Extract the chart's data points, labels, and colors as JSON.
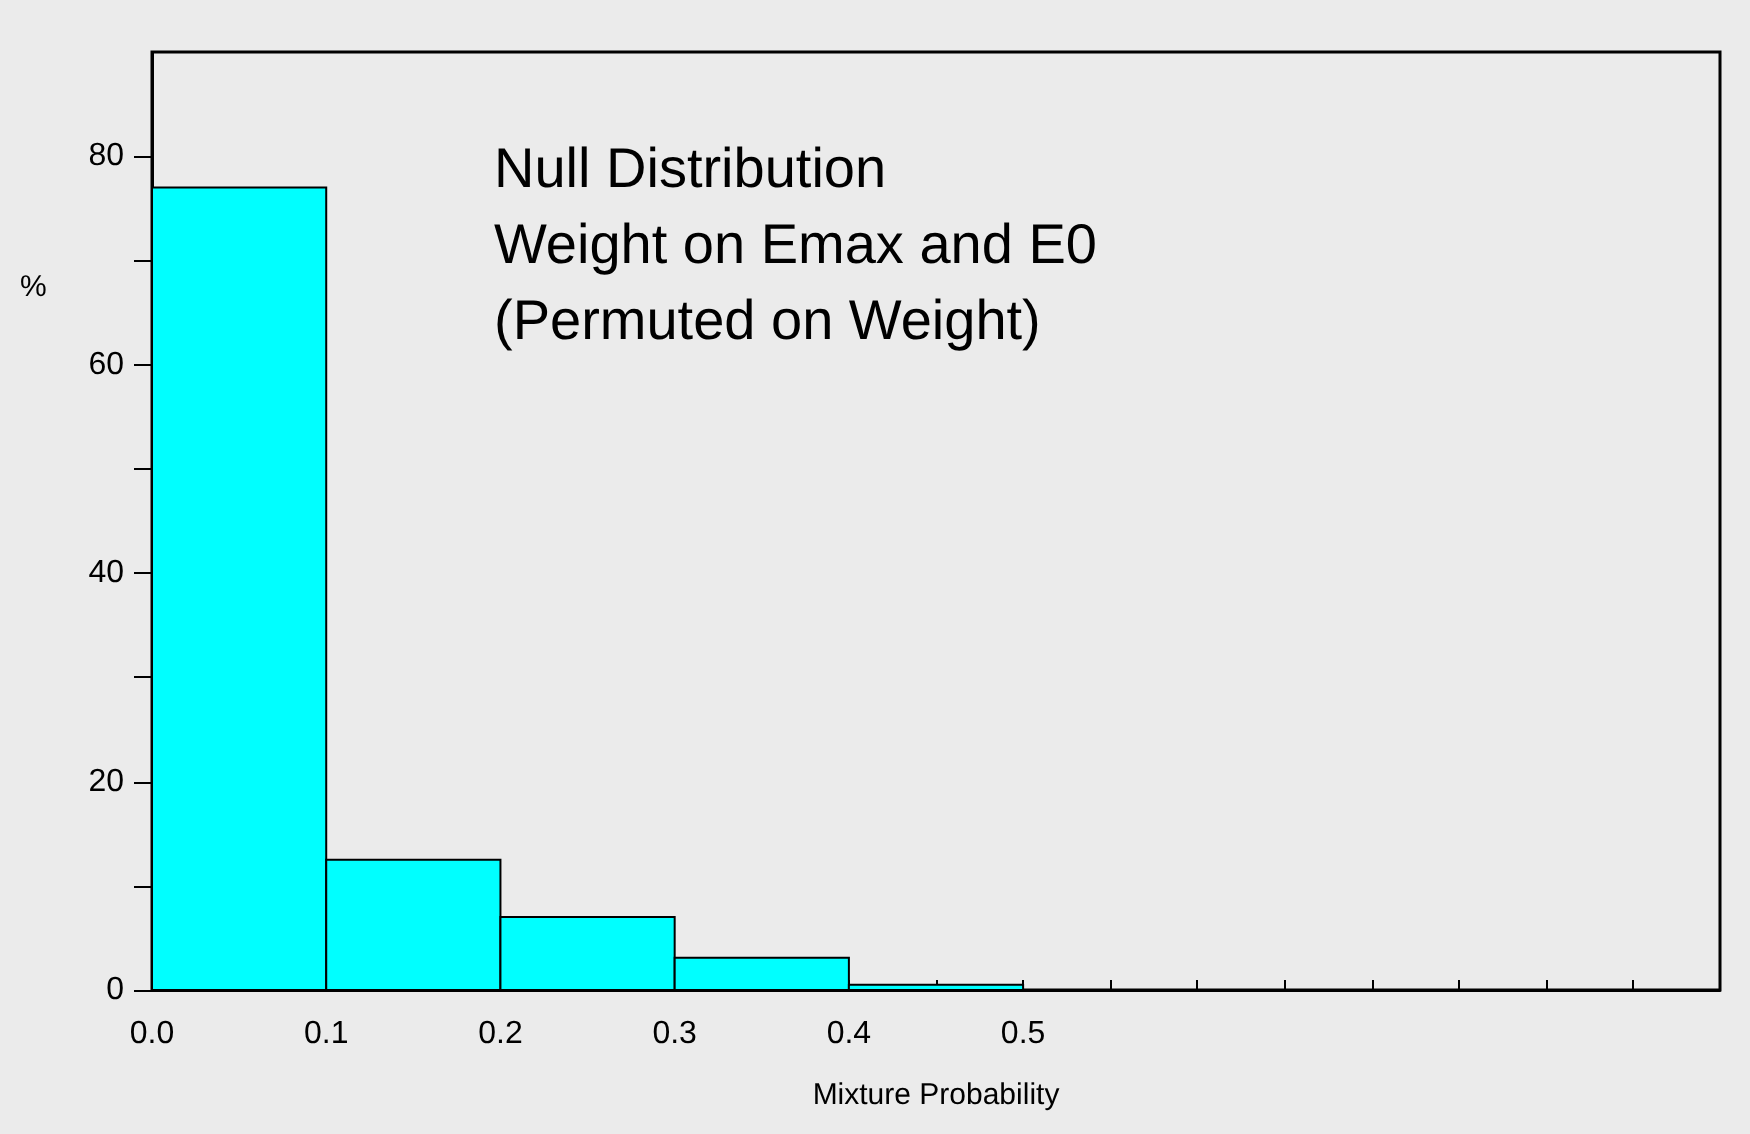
{
  "chart_data": {
    "type": "histogram",
    "title": "Null Distribution\nWeight on Emax and E0\n(Permuted on Weight)",
    "xlabel": "Mixture Probability",
    "ylabel": "%",
    "bins": [
      0,
      0.1,
      0.2,
      0.3,
      0.4,
      0.5
    ],
    "values": [
      77,
      12.5,
      7,
      3.1,
      0.5
    ],
    "color": "#00ffff",
    "xlim": [
      0,
      0.9
    ],
    "xticks": [
      {
        "value": 0,
        "label": "0.0"
      },
      {
        "value": 0.05,
        "label": null
      },
      {
        "value": 0.1,
        "label": "0.1"
      },
      {
        "value": 0.15,
        "label": null
      },
      {
        "value": 0.2,
        "label": "0.2"
      },
      {
        "value": 0.25,
        "label": null
      },
      {
        "value": 0.3,
        "label": "0.3"
      },
      {
        "value": 0.35,
        "label": null
      },
      {
        "value": 0.4,
        "label": "0.4"
      },
      {
        "value": 0.45,
        "label": null
      },
      {
        "value": 0.5,
        "label": "0.5"
      },
      {
        "value": 0.55,
        "label": null
      },
      {
        "value": 0.6,
        "label": null
      },
      {
        "value": 0.65,
        "label": null
      },
      {
        "value": 0.7,
        "label": null
      },
      {
        "value": 0.75,
        "label": null
      },
      {
        "value": 0.8,
        "label": null
      },
      {
        "value": 0.85,
        "label": null
      }
    ],
    "ylim": [
      0,
      90
    ],
    "yticks": [
      0,
      {
        "value": 10,
        "label": null
      },
      20,
      {
        "value": 30,
        "label": null
      },
      40,
      {
        "value": 50,
        "label": null
      },
      60,
      {
        "value": 70,
        "label": null
      },
      80
    ],
    "grid": false
  }
}
